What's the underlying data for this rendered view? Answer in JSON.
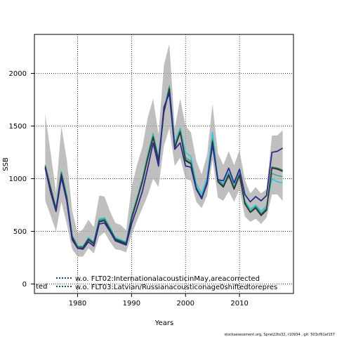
{
  "chart_data": {
    "type": "line",
    "xlabel": "Years",
    "ylabel": "SSB",
    "xlim": [
      1972,
      2020
    ],
    "ylim": [
      -90,
      2370
    ],
    "xticks": [
      1980,
      1990,
      2000,
      2010
    ],
    "yticks": [
      0,
      500,
      1000,
      1500,
      2000
    ],
    "grid": true,
    "grid_style": "dotted",
    "legend_position": "bottom-left",
    "legend_items": [
      {
        "label": "w.o. FLT02:InternationalacousticinMay,areacorrected",
        "color": "#1f3f7a",
        "linestyle": "dotted"
      },
      {
        "label": "w.o. FLT03:Latvian/Russianacousticonage0shiftedtorepres",
        "color": "#1a5a3a",
        "linestyle": "dotted"
      }
    ],
    "legend_truncated_text": "ted",
    "x": [
      1974,
      1975,
      1976,
      1977,
      1978,
      1979,
      1980,
      1981,
      1982,
      1983,
      1984,
      1985,
      1986,
      1987,
      1988,
      1989,
      1990,
      1991,
      1992,
      1993,
      1994,
      1995,
      1996,
      1997,
      1998,
      1999,
      2000,
      2001,
      2002,
      2003,
      2004,
      2005,
      2006,
      2007,
      2008,
      2009,
      2010,
      2011,
      2012,
      2013,
      2014,
      2015,
      2016,
      2017,
      2018
    ],
    "band": {
      "upper": [
        1610,
        1250,
        870,
        1500,
        1180,
        700,
        480,
        520,
        610,
        540,
        840,
        830,
        690,
        580,
        560,
        510,
        920,
        1130,
        1300,
        1580,
        1760,
        1420,
        2080,
        2280,
        1480,
        1760,
        1500,
        1440,
        1170,
        1040,
        1230,
        1710,
        1240,
        1130,
        1260,
        1130,
        1270,
        990,
        860,
        920,
        860,
        900,
        1410,
        1410,
        1460
      ],
      "lower": [
        790,
        650,
        500,
        780,
        570,
        330,
        260,
        260,
        340,
        290,
        450,
        490,
        400,
        330,
        320,
        300,
        460,
        600,
        720,
        840,
        1000,
        920,
        1310,
        1480,
        1120,
        1200,
        1000,
        980,
        780,
        720,
        840,
        1180,
        820,
        790,
        880,
        780,
        900,
        640,
        590,
        620,
        570,
        630,
        850,
        850,
        790
      ]
    },
    "series": [
      {
        "color": "#2ec7e0",
        "values": [
          1120,
          920,
          720,
          1070,
          840,
          460,
          360,
          360,
          440,
          400,
          620,
          630,
          540,
          440,
          420,
          400,
          650,
          820,
          1000,
          1230,
          1430,
          1200,
          1660,
          1880,
          1340,
          1480,
          1250,
          1210,
          950,
          860,
          1010,
          1440,
          1000,
          950,
          1060,
          930,
          1060,
          790,
          710,
          750,
          690,
          740,
          1000,
          970,
          960
        ]
      },
      {
        "color": "#42a89a",
        "values": [
          1130,
          920,
          720,
          1060,
          830,
          460,
          360,
          350,
          430,
          390,
          610,
          620,
          530,
          430,
          410,
          390,
          640,
          810,
          990,
          1220,
          1420,
          1190,
          1650,
          1880,
          1320,
          1470,
          1200,
          1170,
          920,
          830,
          970,
          1380,
          990,
          940,
          1050,
          920,
          1050,
          780,
          690,
          740,
          670,
          720,
          1050,
          1030,
          1020
        ]
      },
      {
        "color": "#2a6b45",
        "values": [
          1120,
          910,
          710,
          1050,
          820,
          450,
          350,
          350,
          430,
          390,
          600,
          610,
          520,
          430,
          410,
          390,
          630,
          800,
          980,
          1200,
          1400,
          1180,
          1640,
          1860,
          1300,
          1450,
          1180,
          1150,
          910,
          820,
          960,
          1360,
          980,
          930,
          1040,
          910,
          1040,
          770,
          680,
          730,
          660,
          710,
          1110,
          1100,
          1080
        ]
      },
      {
        "color": "#333333",
        "values": [
          1110,
          900,
          700,
          1040,
          810,
          440,
          340,
          340,
          420,
          380,
          590,
          600,
          510,
          420,
          400,
          380,
          620,
          790,
          970,
          1190,
          1390,
          1170,
          1630,
          1850,
          1290,
          1440,
          1170,
          1140,
          900,
          810,
          950,
          1350,
          970,
          920,
          1030,
          900,
          1030,
          760,
          680,
          720,
          650,
          700,
          1100,
          1090,
          1070
        ]
      },
      {
        "color": "#2b2d8e",
        "values": [
          1100,
          870,
          690,
          1010,
          790,
          420,
          340,
          330,
          400,
          360,
          570,
          580,
          500,
          410,
          390,
          370,
          570,
          720,
          880,
          1100,
          1340,
          1120,
          1680,
          1810,
          1280,
          1340,
          1120,
          1110,
          900,
          810,
          970,
          1320,
          990,
          980,
          1100,
          960,
          1090,
          850,
          780,
          830,
          790,
          840,
          1250,
          1260,
          1290
        ]
      }
    ],
    "footer": "stockassessment.org, Sprat22to32, r10934 , git: 503cf91af157"
  }
}
